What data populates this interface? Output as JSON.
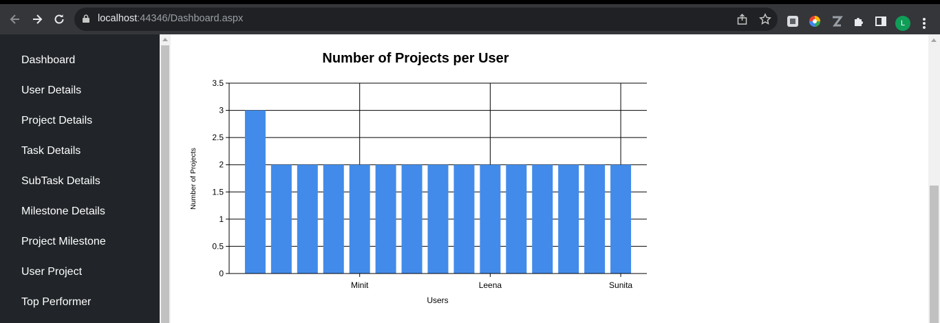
{
  "browser": {
    "url_host": "localhost",
    "url_rest": ":44346/Dashboard.aspx",
    "profile_initial": "L",
    "icons": {
      "back": "arrow-left-icon",
      "forward": "arrow-right-icon",
      "reload": "reload-icon",
      "share": "share-icon",
      "bookmark": "star-icon",
      "menu": "kebab-menu-icon"
    }
  },
  "sidebar": {
    "items": [
      {
        "label": "Dashboard"
      },
      {
        "label": "User Details"
      },
      {
        "label": "Project Details"
      },
      {
        "label": "Task Details"
      },
      {
        "label": "SubTask Details"
      },
      {
        "label": "Milestone Details"
      },
      {
        "label": "Project Milestone"
      },
      {
        "label": "User Project"
      },
      {
        "label": "Top Performer"
      }
    ]
  },
  "colors": {
    "sidebar_bg": "#212529",
    "bar": "#428bea",
    "browser_toolbar": "#35363a"
  },
  "chart_data": {
    "type": "bar",
    "title": "Number of Projects per User",
    "xlabel": "Users",
    "ylabel": "Number of Projects",
    "ylim": [
      0,
      3.5
    ],
    "yticks": [
      "0",
      "0.5",
      "1",
      "1.5",
      "2",
      "2.5",
      "3",
      "3.5"
    ],
    "x_tick_labels": [
      {
        "category_index": 4,
        "label": "Minit"
      },
      {
        "category_index": 9,
        "label": "Leena"
      },
      {
        "category_index": 14,
        "label": "Sunita"
      }
    ],
    "categories": [
      "",
      "",
      "",
      "",
      "Minit",
      "",
      "",
      "",
      "",
      "Leena",
      "",
      "",
      "",
      "",
      "Sunita"
    ],
    "values": [
      3,
      2,
      2,
      2,
      2,
      2,
      2,
      2,
      2,
      2,
      2,
      2,
      2,
      2,
      2
    ],
    "grid": true,
    "legend": "none"
  }
}
